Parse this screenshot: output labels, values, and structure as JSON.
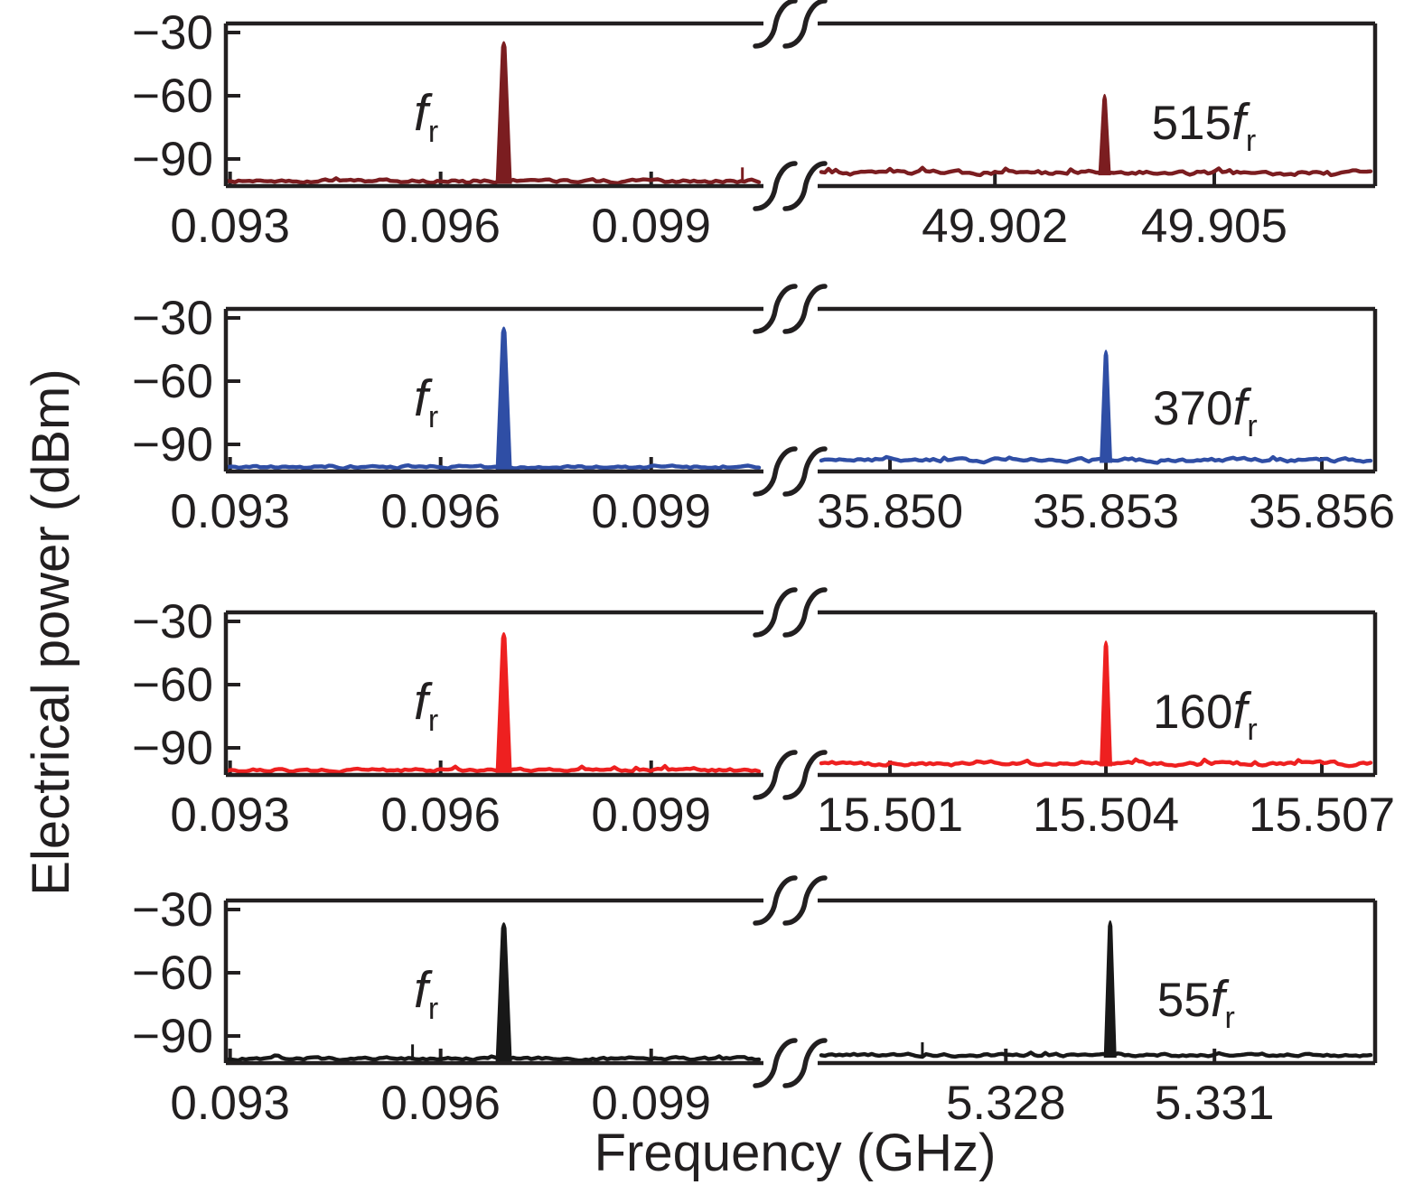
{
  "figure": {
    "xlabel": "Frequency (GHz)",
    "ylabel": "Electrical power (dBm)",
    "ink_color": "#221f20",
    "background": "#ffffff"
  },
  "chart_data": {
    "type": "line",
    "title": "",
    "xlabel": "Frequency (GHz)",
    "ylabel": "Electrical power (dBm)",
    "grid": false,
    "legend": "none",
    "y_axis": {
      "tick_values": [
        -30,
        -60,
        -90
      ],
      "tick_labels": [
        "−30",
        "−60",
        "−90"
      ],
      "ylim": [
        -103,
        -26
      ],
      "units": "dBm"
    },
    "x_axis_break": true,
    "panels": [
      {
        "id": "panel-515fr",
        "trace_color": "#7b1d20",
        "fr_label": {
          "prefix": "",
          "main": "f",
          "sub": "r"
        },
        "harmonic_label": {
          "prefix": "515",
          "main": "f",
          "sub": "r"
        },
        "left": {
          "xlim": [
            0.09294,
            0.1006
          ],
          "ticks": [
            0.093,
            0.096,
            0.099
          ],
          "tick_labels": [
            "0.093",
            "0.096",
            "0.099"
          ],
          "noise_floor_dbm": -100.5,
          "noise_amp_db": 1.4,
          "seed": 11,
          "peak": {
            "freq": 0.0969,
            "power_dbm": -33
          },
          "spurs": [
            {
              "freq": 0.1003,
              "power_dbm": -94
            }
          ]
        },
        "right": {
          "xlim": [
            49.8996,
            49.9072
          ],
          "ticks": [
            49.902,
            49.905
          ],
          "tick_labels": [
            "49.902",
            "49.905"
          ],
          "noise_floor_dbm": -96.5,
          "noise_amp_db": 1.8,
          "seed": 12,
          "peak": {
            "freq": 49.9035,
            "power_dbm": -58
          },
          "spurs": []
        }
      },
      {
        "id": "panel-370fr",
        "trace_color": "#2f4ea5",
        "fr_label": {
          "prefix": "",
          "main": "f",
          "sub": "r"
        },
        "harmonic_label": {
          "prefix": "370",
          "main": "f",
          "sub": "r"
        },
        "left": {
          "xlim": [
            0.09294,
            0.1006
          ],
          "ticks": [
            0.093,
            0.096,
            0.099
          ],
          "tick_labels": [
            "0.093",
            "0.096",
            "0.099"
          ],
          "noise_floor_dbm": -100.8,
          "noise_amp_db": 1.2,
          "seed": 21,
          "peak": {
            "freq": 0.0969,
            "power_dbm": -33
          },
          "spurs": []
        },
        "right": {
          "xlim": [
            35.84902,
            35.85674
          ],
          "ticks": [
            35.85,
            35.853,
            35.856
          ],
          "tick_labels": [
            "35.850",
            "35.853",
            "35.856"
          ],
          "noise_floor_dbm": -97.5,
          "noise_amp_db": 1.6,
          "seed": 22,
          "peak": {
            "freq": 35.853,
            "power_dbm": -44
          },
          "spurs": []
        }
      },
      {
        "id": "panel-160fr",
        "trace_color": "#ee2020",
        "fr_label": {
          "prefix": "",
          "main": "f",
          "sub": "r"
        },
        "harmonic_label": {
          "prefix": "160",
          "main": "f",
          "sub": "r"
        },
        "left": {
          "xlim": [
            0.09294,
            0.1006
          ],
          "ticks": [
            0.093,
            0.096,
            0.099
          ],
          "tick_labels": [
            "0.093",
            "0.096",
            "0.099"
          ],
          "noise_floor_dbm": -100.6,
          "noise_amp_db": 1.3,
          "seed": 31,
          "peak": {
            "freq": 0.0969,
            "power_dbm": -34
          },
          "spurs": []
        },
        "right": {
          "xlim": [
            15.50002,
            15.50774
          ],
          "ticks": [
            15.501,
            15.504,
            15.507
          ],
          "tick_labels": [
            "15.501",
            "15.504",
            "15.507"
          ],
          "noise_floor_dbm": -97.5,
          "noise_amp_db": 1.6,
          "seed": 32,
          "peak": {
            "freq": 15.504,
            "power_dbm": -38
          },
          "spurs": []
        }
      },
      {
        "id": "panel-55fr",
        "trace_color": "#181818",
        "fr_label": {
          "prefix": "",
          "main": "f",
          "sub": "r"
        },
        "harmonic_label": {
          "prefix": "55",
          "main": "f",
          "sub": "r"
        },
        "left": {
          "xlim": [
            0.09294,
            0.1006
          ],
          "ticks": [
            0.093,
            0.096,
            0.099
          ],
          "tick_labels": [
            "0.093",
            "0.096",
            "0.099"
          ],
          "noise_floor_dbm": -100.8,
          "noise_amp_db": 1.2,
          "seed": 41,
          "peak": {
            "freq": 0.0969,
            "power_dbm": -35
          },
          "spurs": [
            {
              "freq": 0.0956,
              "power_dbm": -94
            }
          ]
        },
        "right": {
          "xlim": [
            5.32532,
            5.33331
          ],
          "ticks": [
            5.328,
            5.331
          ],
          "tick_labels": [
            "5.328",
            "5.331"
          ],
          "noise_floor_dbm": -99.0,
          "noise_amp_db": 1.2,
          "seed": 42,
          "peak": {
            "freq": 5.3295,
            "power_dbm": -34
          },
          "spurs": [
            {
              "freq": 5.3268,
              "power_dbm": -93
            }
          ]
        }
      }
    ]
  }
}
